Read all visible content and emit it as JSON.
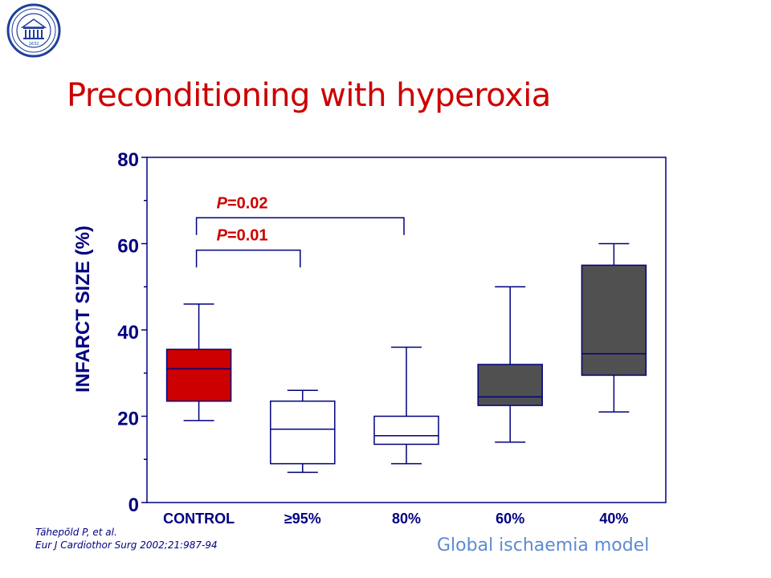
{
  "slide": {
    "title": "Preconditioning with hyperoxia",
    "citation_line1": "Tähepõld P, et al.",
    "citation_line2": "Eur J Cardiothor Surg 2002;21:987-94",
    "model_label": "Global ischaemia model",
    "logo": {
      "icon": "university-seal-icon",
      "year": "1632"
    }
  },
  "chart_data": {
    "type": "boxplot",
    "title": "",
    "ylabel": "INFARCT SIZE (%)",
    "xlabel": "",
    "ylim": [
      0,
      80
    ],
    "yticks": [
      0,
      20,
      40,
      60,
      80
    ],
    "categories": [
      "CONTROL",
      "≥95%",
      "80%",
      "60%",
      "40%"
    ],
    "boxes": [
      {
        "category": "CONTROL",
        "min": 19,
        "q1": 23.5,
        "median": 31,
        "q3": 35.5,
        "max": 46,
        "fill": "#cc0000"
      },
      {
        "category": "≥95%",
        "min": 7,
        "q1": 9,
        "median": 17,
        "q3": 23.5,
        "max": 26,
        "fill": "#ffffff"
      },
      {
        "category": "80%",
        "min": 9,
        "q1": 13.5,
        "median": 15.5,
        "q3": 20,
        "max": 36,
        "fill": "#ffffff"
      },
      {
        "category": "60%",
        "min": 14,
        "q1": 22.5,
        "median": 24.5,
        "q3": 32,
        "max": 50,
        "fill": "#505050"
      },
      {
        "category": "40%",
        "min": 21,
        "q1": 29.5,
        "median": 34.5,
        "q3": 55,
        "max": 60,
        "fill": "#505050"
      }
    ],
    "annotations": [
      {
        "label_italic": "P",
        "label_rest": "=0.02",
        "from": "CONTROL",
        "to": "80%",
        "y": 66,
        "tick_to": 62
      },
      {
        "label_italic": "P",
        "label_rest": "=0.01",
        "from": "CONTROL",
        "to": "≥95%",
        "y": 58.5,
        "tick_to": 54.5
      }
    ],
    "colors": {
      "axis": "#000080",
      "ylabel": "#000080",
      "annotation": "#cc0000"
    }
  }
}
